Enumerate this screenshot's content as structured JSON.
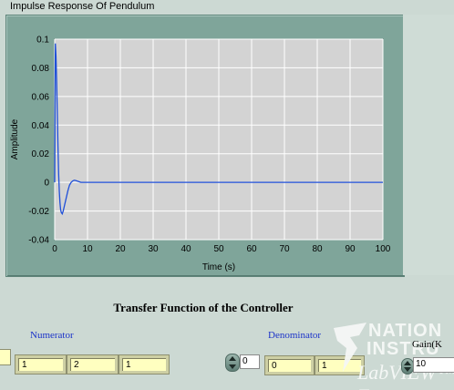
{
  "graph": {
    "caption": "Impulse Response  Of Pendulum",
    "colors": {
      "plot_bg": "#d3d3d3",
      "grid": "#ffffff",
      "trace": "#1f4fd8",
      "frame": "#7fa59a"
    }
  },
  "chart_data": {
    "type": "line",
    "title": "",
    "xlabel": "Time (s)",
    "ylabel": "Amplitude",
    "xlim": [
      0,
      100
    ],
    "ylim": [
      -0.04,
      0.1
    ],
    "x_ticks": [
      "0",
      "10",
      "20",
      "30",
      "40",
      "50",
      "60",
      "70",
      "80",
      "90",
      "100"
    ],
    "y_ticks": [
      "0.1",
      "0.08",
      "0.06",
      "0.04",
      "0.02",
      "0",
      "-0.02",
      "-0.04"
    ],
    "grid": true,
    "series": [
      {
        "x": [
          0,
          0.2,
          0.4,
          0.6,
          0.8,
          1.0,
          1.2,
          1.4,
          1.6,
          1.8,
          2.0,
          2.3,
          2.6,
          3.0,
          3.5,
          4.0,
          4.5,
          5.0,
          5.5,
          6.0,
          6.5,
          7.0,
          7.5,
          8.0,
          9.0,
          10.0,
          12.0,
          15.0,
          20.0,
          40.0,
          60.0,
          80.0,
          100.0
        ],
        "y": [
          0.0,
          0.097,
          0.088,
          0.07,
          0.048,
          0.025,
          0.006,
          -0.006,
          -0.014,
          -0.019,
          -0.021,
          -0.022,
          -0.02,
          -0.016,
          -0.011,
          -0.006,
          -0.002,
          0.0,
          0.001,
          0.0015,
          0.0012,
          0.0008,
          0.0004,
          0.0,
          0.0,
          0.0,
          0.0,
          0.0,
          0.0,
          0.0,
          0.0,
          0.0,
          0.0
        ]
      }
    ]
  },
  "controller": {
    "section_title": "Transfer Function of the Controller",
    "numerator_label": "Numerator",
    "denominator_label": "Denominator",
    "numerator_values": [
      "1",
      "2",
      "1"
    ],
    "denominator_index": "0",
    "denominator_values": [
      "0",
      "1"
    ],
    "gain_label": "Gain(K",
    "gain_value": "10"
  },
  "watermark": {
    "line1": "NATION",
    "line2": "INSTRU",
    "line3": "LabVIEW™ Ev"
  }
}
